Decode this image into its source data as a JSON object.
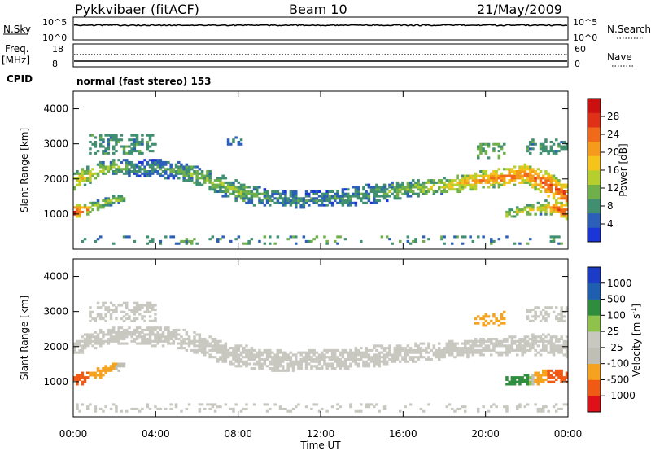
{
  "header": {
    "station": "Pykkvibaer (fitACF)",
    "beam": "Beam 10",
    "date": "21/May/2009"
  },
  "strips": {
    "nsky": {
      "label": "N.Sky",
      "ticks": [
        "10^5",
        "10^0"
      ],
      "right_ticks": [
        "10^5",
        "10^0"
      ],
      "right_label": "N.Search"
    },
    "freq": {
      "label_top": "Freq.",
      "label_unit": "[MHz]",
      "ticks": [
        "18",
        "8"
      ],
      "right_ticks": [
        "60",
        "0"
      ],
      "right_label": "Nave"
    },
    "cpid": {
      "label": "CPID",
      "text": "normal (fast stereo) 153"
    }
  },
  "colors": {
    "power": [
      "#1a35d8",
      "#2c5fb8",
      "#3f8f70",
      "#6fb04a",
      "#b6cf2e",
      "#f5c31a",
      "#f59a1b",
      "#f06a1a",
      "#e03018",
      "#cc1010"
    ],
    "velocity": [
      "#e0101a",
      "#f05a14",
      "#f5a21e",
      "#bfbfb5",
      "#c8c8c0",
      "#8fc24a",
      "#2f8e3e",
      "#1e5fb0",
      "#1c3cc8"
    ]
  },
  "chart_data": [
    {
      "type": "heatmap",
      "name": "power-panel",
      "ylabel": "Slant Range [km]",
      "xlim": [
        0,
        24
      ],
      "ylim": [
        0,
        4500
      ],
      "yticks": [
        1000,
        2000,
        3000,
        4000
      ],
      "colorbar": {
        "label": "Power [dB]",
        "ticks": [
          "4",
          "8",
          "12",
          "16",
          "20",
          "24",
          "28"
        ],
        "range": [
          0,
          32
        ]
      },
      "bands": [
        {
          "times": [
            0,
            1,
            2,
            3,
            4,
            5,
            6,
            7,
            8,
            9,
            10,
            11,
            12,
            13,
            14,
            15,
            16,
            17,
            18,
            19,
            20,
            21,
            22,
            23,
            24
          ],
          "center": [
            1900,
            2200,
            2350,
            2300,
            2300,
            2250,
            2100,
            1850,
            1650,
            1500,
            1450,
            1400,
            1450,
            1450,
            1550,
            1600,
            1700,
            1750,
            1800,
            1900,
            2000,
            2050,
            2150,
            1850,
            1500
          ],
          "width": [
            550,
            500,
            450,
            450,
            550,
            500,
            550,
            600,
            600,
            550,
            500,
            450,
            450,
            500,
            550,
            550,
            500,
            450,
            450,
            500,
            500,
            550,
            600,
            700,
            700
          ],
          "power": [
            18,
            16,
            12,
            8,
            8,
            10,
            12,
            12,
            12,
            10,
            8,
            8,
            8,
            8,
            8,
            10,
            12,
            14,
            16,
            20,
            22,
            24,
            24,
            26,
            26
          ]
        },
        {
          "times": [
            0,
            0.5,
            1,
            1.5,
            2,
            2.5
          ],
          "center": [
            1050,
            1100,
            1200,
            1300,
            1400,
            1450
          ],
          "width": [
            400,
            350,
            300,
            280,
            250,
            200
          ],
          "power": [
            28,
            24,
            16,
            14,
            14,
            12
          ]
        },
        {
          "times": [
            21,
            22,
            23,
            23.5,
            24
          ],
          "center": [
            1000,
            1100,
            1200,
            1150,
            1050
          ],
          "width": [
            250,
            300,
            400,
            400,
            400
          ],
          "power": [
            14,
            16,
            18,
            26,
            28
          ]
        }
      ],
      "patches": [
        {
          "t": [
            0.8,
            4.0
          ],
          "r": [
            2700,
            3250
          ],
          "power": 6
        },
        {
          "t": [
            7.5,
            8.2
          ],
          "r": [
            2950,
            3200
          ],
          "power": 4
        },
        {
          "t": [
            19.5,
            21.0
          ],
          "r": [
            2600,
            3000
          ],
          "power": 8
        },
        {
          "t": [
            22.0,
            24.0
          ],
          "r": [
            2700,
            3150
          ],
          "power": 6
        }
      ],
      "ground_scatter_range": [
        150,
        400
      ]
    },
    {
      "type": "heatmap",
      "name": "velocity-panel",
      "ylabel": "Slant Range [km]",
      "xlabel": "Time UT",
      "xlim": [
        0,
        24
      ],
      "xticks": [
        "00:00",
        "04:00",
        "08:00",
        "12:00",
        "16:00",
        "20:00",
        "00:00"
      ],
      "ylim": [
        0,
        4500
      ],
      "yticks": [
        1000,
        2000,
        3000,
        4000
      ],
      "colorbar": {
        "label": "Velocity [m s",
        "label_sup": "-1",
        "label_end": "]",
        "ticks": [
          "-1000",
          "-500",
          "-100",
          "-25",
          "25",
          "100",
          "500",
          "1000"
        ]
      },
      "bands": [
        {
          "times": [
            0,
            1,
            2,
            3,
            4,
            5,
            6,
            7,
            8,
            9,
            10,
            11,
            12,
            13,
            14,
            15,
            16,
            17,
            18,
            19,
            20,
            21,
            22,
            23,
            24
          ],
          "center": [
            2000,
            2200,
            2300,
            2300,
            2300,
            2250,
            2100,
            1900,
            1750,
            1650,
            1600,
            1600,
            1650,
            1650,
            1700,
            1750,
            1800,
            1850,
            1900,
            1950,
            2000,
            2000,
            2050,
            2050,
            2000
          ],
          "width": [
            550,
            500,
            500,
            500,
            600,
            550,
            600,
            650,
            650,
            600,
            600,
            550,
            550,
            600,
            600,
            600,
            550,
            500,
            500,
            500,
            550,
            550,
            600,
            600,
            600
          ],
          "velocity": [
            0,
            0,
            0,
            0,
            0,
            0,
            0,
            0,
            0,
            0,
            0,
            0,
            0,
            0,
            0,
            0,
            0,
            0,
            0,
            0,
            0,
            0,
            0,
            0,
            0
          ]
        },
        {
          "times": [
            0,
            0.5,
            1,
            1.5,
            2,
            2.5
          ],
          "center": [
            1050,
            1100,
            1200,
            1300,
            1400,
            1450
          ],
          "width": [
            400,
            350,
            300,
            280,
            250,
            200
          ],
          "velocity": [
            -800,
            -600,
            -400,
            -200,
            -100,
            -50
          ]
        },
        {
          "times": [
            21,
            22,
            23,
            23.5,
            24
          ],
          "center": [
            1000,
            1050,
            1150,
            1150,
            1100
          ],
          "width": [
            250,
            300,
            400,
            400,
            400
          ],
          "velocity": [
            300,
            150,
            -500,
            -900,
            -1000
          ]
        }
      ],
      "patches": [
        {
          "t": [
            0.8,
            4.0
          ],
          "r": [
            2700,
            3250
          ],
          "velocity": 0
        },
        {
          "t": [
            19.5,
            21.0
          ],
          "r": [
            2600,
            3000
          ],
          "velocity": -200
        },
        {
          "t": [
            22.0,
            24.0
          ],
          "r": [
            2700,
            3150
          ],
          "velocity": 0
        }
      ],
      "ground_scatter_range": [
        150,
        400
      ]
    }
  ]
}
